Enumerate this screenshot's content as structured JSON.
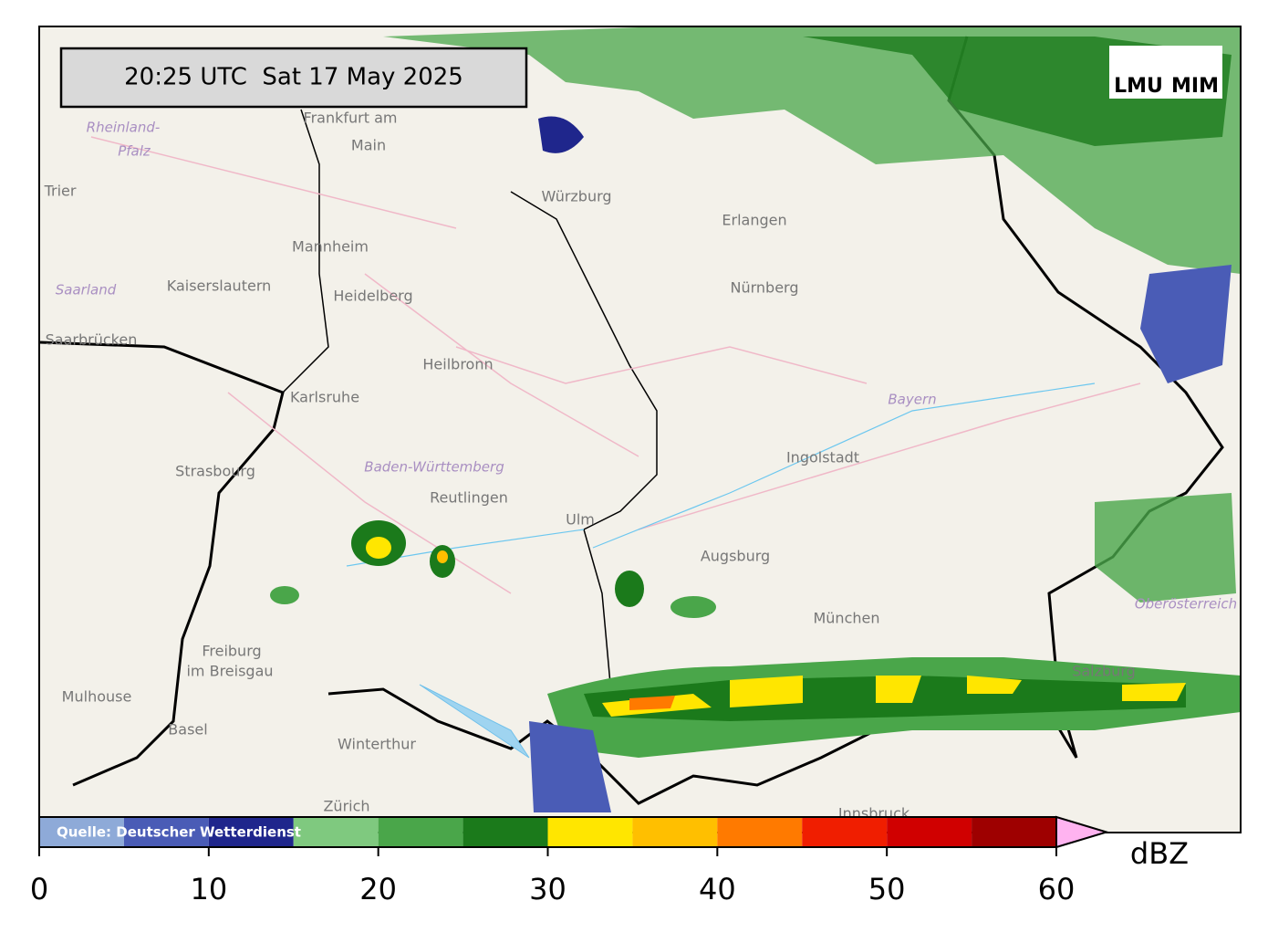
{
  "header": {
    "timestamp": "20:25 UTC  Sat 17 May 2025",
    "logo": [
      "LMU",
      "MIM"
    ]
  },
  "map": {
    "labels": [
      "Frankfurt am",
      "Main",
      "Rheinland-",
      "Pfalz",
      "Trier",
      "Würzburg",
      "Erlangen",
      "Nürnberg",
      "Mannheim",
      "Kaiserslautern",
      "Heidelberg",
      "Saarland",
      "Saarbrücken",
      "Heilbronn",
      "Karlsruhe",
      "Bayern",
      "Ingolstadt",
      "Strasbourg",
      "Baden-Württemberg",
      "Reutlingen",
      "Ulm",
      "Augsburg",
      "München",
      "Freiburg",
      "im Breisgau",
      "Mulhouse",
      "Basel",
      "Winterthur",
      "Zürich",
      "Salzburg",
      "Oberösterreich",
      "Innsbruck"
    ]
  },
  "colorbar": {
    "source": "Quelle: Deutscher Wetterdienst",
    "unit": "dBZ",
    "bounds": [
      0,
      5,
      10,
      15,
      20,
      25,
      30,
      35,
      40,
      45,
      50,
      55,
      60
    ],
    "colors": [
      "#8eaad8",
      "#4a5cb6",
      "#1f268c",
      "#7fc97f",
      "#4aa64a",
      "#1b7a1b",
      "#ffe600",
      "#ffbf00",
      "#ff7a00",
      "#f01e00",
      "#d00000",
      "#9e0000"
    ],
    "extend_color": "#ffb3f0",
    "lim": [
      0,
      60
    ],
    "ticks": [
      0,
      10,
      20,
      30,
      40,
      50,
      60
    ]
  }
}
